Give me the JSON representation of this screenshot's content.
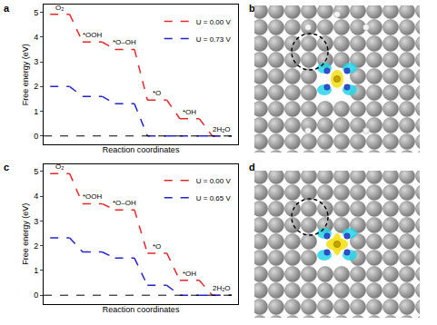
{
  "chart_data": [
    {
      "type": "line",
      "panel": "a",
      "categories": [
        "O₂",
        "*OOH",
        "*O–OH",
        "*O",
        "*OH",
        "2H₂O"
      ],
      "y_label": "Free energy (eV)",
      "x_label": "Reaction coordinates",
      "series": [
        {
          "name": "U = 0.00 V",
          "color": "#e8262a",
          "values": [
            4.92,
            3.8,
            3.5,
            1.45,
            0.7,
            0
          ]
        },
        {
          "name": "U = 0.73 V",
          "color": "#2323d2",
          "values": [
            2.0,
            1.6,
            1.3,
            0,
            0,
            0
          ]
        }
      ],
      "ylim": [
        -0.35,
        5.3
      ],
      "yticks": [
        0,
        1,
        2,
        3,
        4,
        5
      ],
      "baseline": 0,
      "tick_labels": "y",
      "legend": "upper right",
      "line_style": "dashed"
    },
    {
      "type": "line",
      "panel": "c",
      "categories": [
        "O₂",
        "*OOH",
        "*O–OH",
        "*O",
        "*OH",
        "2H₂O"
      ],
      "y_label": "Free energy (eV)",
      "x_label": "Reaction coordinates",
      "series": [
        {
          "name": "U = 0.00 V",
          "color": "#e8262a",
          "values": [
            4.92,
            3.7,
            3.45,
            1.7,
            0.6,
            0
          ]
        },
        {
          "name": "U = 0.65 V",
          "color": "#2323d2",
          "values": [
            2.32,
            1.75,
            1.5,
            0.4,
            0,
            0
          ]
        }
      ],
      "ylim": [
        -0.35,
        5.3
      ],
      "yticks": [
        0,
        1,
        2,
        3,
        4,
        5
      ],
      "baseline": 0,
      "tick_labels": "y",
      "legend": "upper right",
      "line_style": "dashed"
    }
  ],
  "structures": [
    {
      "panel": "b"
    },
    {
      "panel": "d"
    }
  ]
}
